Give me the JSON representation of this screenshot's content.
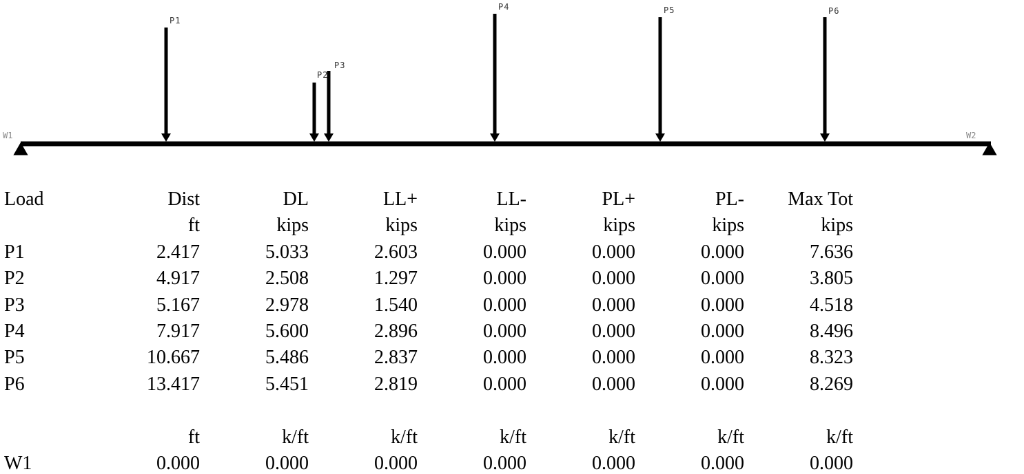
{
  "diagram": {
    "support_left": "W1",
    "support_right": "W2",
    "loads": [
      {
        "label": "P1"
      },
      {
        "label": "P2"
      },
      {
        "label": "P3"
      },
      {
        "label": "P4"
      },
      {
        "label": "P5"
      },
      {
        "label": "P6"
      }
    ]
  },
  "table": {
    "headers": [
      "Load",
      "Dist",
      "DL",
      "LL+",
      "LL-",
      "PL+",
      "PL-",
      "Max Tot"
    ],
    "units": [
      "",
      "ft",
      "kips",
      "kips",
      "kips",
      "kips",
      "kips",
      "kips"
    ],
    "rows": [
      [
        "P1",
        "2.417",
        "5.033",
        "2.603",
        "0.000",
        "0.000",
        "0.000",
        "7.636"
      ],
      [
        "P2",
        "4.917",
        "2.508",
        "1.297",
        "0.000",
        "0.000",
        "0.000",
        "3.805"
      ],
      [
        "P3",
        "5.167",
        "2.978",
        "1.540",
        "0.000",
        "0.000",
        "0.000",
        "4.518"
      ],
      [
        "P4",
        "7.917",
        "5.600",
        "2.896",
        "0.000",
        "0.000",
        "0.000",
        "8.496"
      ],
      [
        "P5",
        "10.667",
        "5.486",
        "2.837",
        "0.000",
        "0.000",
        "0.000",
        "8.323"
      ],
      [
        "P6",
        "13.417",
        "5.451",
        "2.819",
        "0.000",
        "0.000",
        "0.000",
        "8.269"
      ]
    ],
    "dist_units": [
      "",
      "ft",
      "k/ft",
      "k/ft",
      "k/ft",
      "k/ft",
      "k/ft",
      "k/ft"
    ],
    "dist_rows": [
      [
        "W1",
        "0.000",
        "0.000",
        "0.000",
        "0.000",
        "0.000",
        "0.000",
        "0.000"
      ]
    ]
  }
}
